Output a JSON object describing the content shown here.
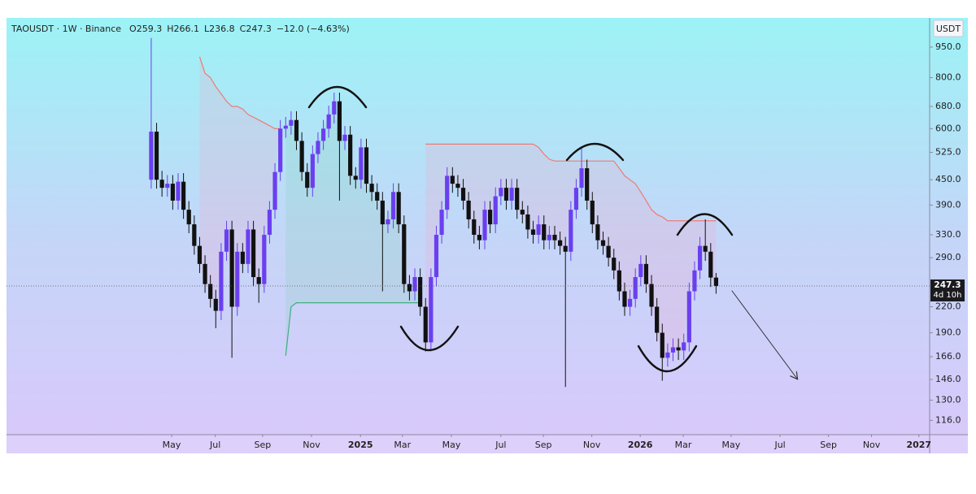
{
  "chart_data": {
    "type": "candlestick",
    "symbol": "TAOUSDT · 1W · Binance",
    "header_labels": [
      "O",
      "H",
      "L",
      "C"
    ],
    "change": "−12.0 (−4.63%)",
    "currency": "USDT",
    "countdown": "4d 10h",
    "up_color": "#6b3ff0",
    "down_color": "#111111",
    "open": [
      450,
      590,
      450,
      430,
      440,
      400,
      445,
      380,
      350,
      310,
      280,
      250,
      230,
      215,
      300,
      340,
      220,
      300,
      280,
      340,
      260,
      250,
      330,
      380,
      470,
      600,
      610,
      630,
      560,
      470,
      430,
      520,
      560,
      600,
      650,
      700,
      560,
      580,
      460,
      450,
      540,
      440,
      420,
      400,
      350,
      360,
      420,
      350,
      250,
      240,
      260,
      220,
      180,
      260,
      330,
      380,
      460,
      440,
      430,
      400,
      360,
      330,
      320,
      380,
      350,
      410,
      430,
      400,
      430,
      380,
      370,
      340,
      330,
      350,
      320,
      330,
      320,
      310,
      300,
      380,
      430,
      480,
      400,
      350,
      320,
      310,
      290,
      270,
      240,
      220,
      230,
      260,
      280,
      250,
      220,
      190,
      165,
      170,
      175,
      172,
      180,
      240,
      270,
      310,
      300,
      259.3
    ],
    "high": [
      1000,
      620,
      473,
      462,
      462,
      467,
      467,
      399,
      368,
      326,
      294,
      263,
      242,
      315,
      357,
      357,
      315,
      315,
      357,
      357,
      273,
      347,
      399,
      494,
      630,
      641,
      662,
      662,
      588,
      494,
      546,
      588,
      630,
      683,
      735,
      735,
      609,
      609,
      483,
      567,
      567,
      462,
      441,
      420,
      378,
      441,
      441,
      368,
      263,
      273,
      273,
      231,
      273,
      347,
      399,
      483,
      483,
      462,
      452,
      420,
      378,
      347,
      399,
      399,
      431,
      452,
      452,
      452,
      452,
      399,
      389,
      357,
      368,
      368,
      347,
      347,
      336,
      326,
      399,
      452,
      540,
      504,
      420,
      368,
      336,
      326,
      305,
      284,
      252,
      242,
      273,
      294,
      294,
      263,
      231,
      200,
      179,
      184,
      184,
      189,
      252,
      284,
      326,
      360,
      315,
      266.1
    ],
    "low": [
      428,
      428,
      409,
      409,
      380,
      380,
      361,
      333,
      295,
      266,
      238,
      219,
      195,
      204,
      285,
      165,
      209,
      266,
      266,
      247,
      225,
      238,
      314,
      361,
      447,
      570,
      580,
      532,
      447,
      409,
      409,
      494,
      532,
      570,
      618,
      400,
      532,
      437,
      428,
      428,
      418,
      399,
      380,
      240,
      333,
      342,
      333,
      238,
      228,
      228,
      209,
      171,
      171,
      247,
      314,
      361,
      418,
      409,
      380,
      342,
      314,
      304,
      304,
      333,
      333,
      390,
      380,
      380,
      361,
      352,
      323,
      314,
      314,
      304,
      304,
      304,
      295,
      140,
      285,
      361,
      409,
      380,
      333,
      304,
      295,
      276,
      257,
      228,
      209,
      209,
      219,
      247,
      238,
      209,
      181,
      145,
      157,
      162,
      163,
      163,
      171,
      228,
      257,
      285,
      246,
      236.8
    ],
    "close": [
      590,
      450,
      430,
      440,
      400,
      445,
      380,
      350,
      310,
      280,
      250,
      230,
      215,
      300,
      340,
      220,
      300,
      280,
      340,
      260,
      250,
      330,
      380,
      470,
      600,
      610,
      630,
      560,
      470,
      430,
      520,
      560,
      600,
      650,
      700,
      560,
      580,
      460,
      450,
      540,
      440,
      420,
      400,
      350,
      360,
      420,
      350,
      250,
      240,
      260,
      220,
      180,
      260,
      330,
      380,
      460,
      440,
      430,
      400,
      360,
      330,
      320,
      380,
      350,
      410,
      430,
      400,
      430,
      380,
      370,
      340,
      330,
      350,
      320,
      330,
      320,
      310,
      300,
      380,
      430,
      480,
      400,
      350,
      320,
      310,
      290,
      270,
      240,
      220,
      230,
      260,
      280,
      250,
      220,
      190,
      165,
      170,
      175,
      172,
      180,
      240,
      270,
      310,
      300,
      259.3,
      247.3
    ],
    "upper_band": {
      "color": "#f07a72",
      "fill": "#f4a6c8",
      "values": [
        null,
        null,
        null,
        null,
        null,
        null,
        null,
        null,
        null,
        900,
        820,
        800,
        760,
        730,
        700,
        680,
        680,
        670,
        650,
        640,
        630,
        620,
        610,
        600,
        600,
        null,
        null,
        null,
        null,
        null,
        null,
        null,
        null,
        null,
        null,
        null,
        null,
        null,
        null,
        null,
        null,
        null,
        null,
        null,
        null,
        null,
        null,
        null,
        null,
        null,
        null,
        550,
        550,
        550,
        550,
        550,
        550,
        550,
        550,
        550,
        550,
        550,
        550,
        550,
        550,
        550,
        550,
        550,
        550,
        550,
        550,
        550,
        540,
        520,
        505,
        500,
        500,
        500,
        500,
        500,
        500,
        500,
        500,
        500,
        500,
        500,
        500,
        480,
        460,
        450,
        440,
        420,
        400,
        380,
        370,
        365,
        357,
        357,
        357,
        357,
        357,
        357,
        357,
        357,
        357,
        357
      ]
    },
    "lower_band": {
      "color": "#3fae7e",
      "fill": "#7fd3b0",
      "values": [
        null,
        null,
        null,
        null,
        null,
        null,
        null,
        null,
        null,
        null,
        null,
        null,
        null,
        null,
        null,
        null,
        null,
        null,
        null,
        null,
        null,
        null,
        null,
        null,
        null,
        167,
        220,
        225,
        225,
        225,
        225,
        225,
        225,
        225,
        225,
        225,
        225,
        225,
        225,
        225,
        225,
        225,
        225,
        225,
        225,
        225,
        225,
        225,
        225,
        225,
        225,
        null,
        null,
        null,
        null,
        null,
        null,
        null,
        null,
        null,
        null,
        null,
        null,
        null,
        null,
        null,
        null,
        null,
        null,
        null,
        null,
        null,
        null,
        null,
        null,
        null,
        null,
        null,
        null,
        null,
        null,
        null,
        null,
        null,
        null,
        null,
        null,
        null,
        null,
        null,
        null,
        null,
        null,
        null,
        null,
        null,
        null,
        null,
        null,
        null,
        null,
        null,
        null,
        null,
        null,
        null
      ]
    },
    "log_scale": true,
    "grid": false,
    "ylim": [
      107,
      1120
    ],
    "yticks": [
      {
        "value": 950,
        "label": "950.0"
      },
      {
        "value": 800,
        "label": "800.0"
      },
      {
        "value": 680,
        "label": "680.0"
      },
      {
        "value": 600,
        "label": "600.0"
      },
      {
        "value": 525,
        "label": "525.0"
      },
      {
        "value": 450,
        "label": "450.0"
      },
      {
        "value": 390,
        "label": "390.0"
      },
      {
        "value": 330,
        "label": "330.0"
      },
      {
        "value": 290,
        "label": "290.0"
      },
      {
        "value": 220,
        "label": "220.0"
      },
      {
        "value": 190,
        "label": "190.0"
      },
      {
        "value": 166,
        "label": "166.0"
      },
      {
        "value": 146,
        "label": "146.0"
      },
      {
        "value": 130,
        "label": "130.0"
      },
      {
        "value": 116,
        "label": "116.0"
      }
    ],
    "xlim": [
      -26.9,
      144.7
    ],
    "xticks": [
      {
        "value": 3.8,
        "label": "May"
      },
      {
        "value": 11.9,
        "label": "Jul"
      },
      {
        "value": 20.7,
        "label": "Sep"
      },
      {
        "value": 29.8,
        "label": "Nov"
      },
      {
        "value": 38.9,
        "label": "2025"
      },
      {
        "value": 46.7,
        "label": "Mar"
      },
      {
        "value": 55.8,
        "label": "May"
      },
      {
        "value": 65.0,
        "label": "Jul"
      },
      {
        "value": 72.9,
        "label": "Sep"
      },
      {
        "value": 81.9,
        "label": "Nov"
      },
      {
        "value": 90.9,
        "label": "2026"
      },
      {
        "value": 98.9,
        "label": "Mar"
      },
      {
        "value": 107.8,
        "label": "May"
      },
      {
        "value": 116.9,
        "label": "Jul"
      },
      {
        "value": 125.9,
        "label": "Sep"
      },
      {
        "value": 133.9,
        "label": "Nov"
      },
      {
        "value": 142.7,
        "label": "2027"
      }
    ]
  }
}
